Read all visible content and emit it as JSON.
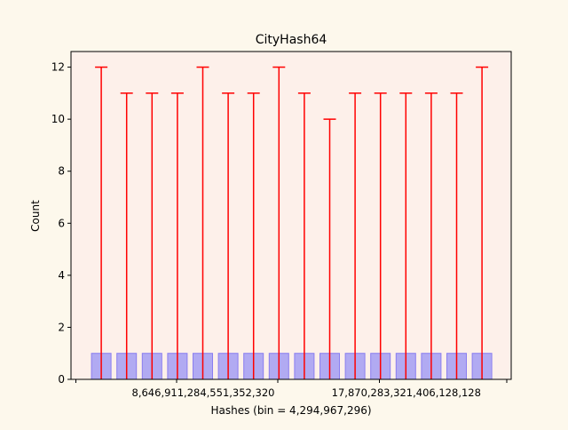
{
  "chart_data": {
    "type": "bar",
    "title": "CityHash64",
    "xlabel": "Hashes (bin = 4,294,967,296)",
    "ylabel": "Count",
    "ylim": [
      0,
      12.6
    ],
    "yticks": [
      0,
      2,
      4,
      6,
      8,
      10,
      12
    ],
    "x_tick_labels": [
      {
        "index": 4.5,
        "label": "8,646,911,284,551,352,320"
      },
      {
        "index": 12.5,
        "label": "17,870,283,321,406,128,128"
      }
    ],
    "grid": false,
    "bars": {
      "values": [
        1,
        1,
        1,
        1,
        1,
        1,
        1,
        1,
        1,
        1,
        1,
        1,
        1,
        1,
        1,
        1
      ],
      "fill": "#b1aaf2",
      "edge": "#8a7ef0"
    },
    "error_bars": {
      "upper": [
        12,
        11,
        11,
        11,
        12,
        11,
        11,
        12,
        11,
        10,
        11,
        11,
        11,
        11,
        11,
        12
      ],
      "color": "#ff0000"
    },
    "colors": {
      "figure_background": "#fdf8ec",
      "axes_background": "#fdf0ea"
    }
  }
}
